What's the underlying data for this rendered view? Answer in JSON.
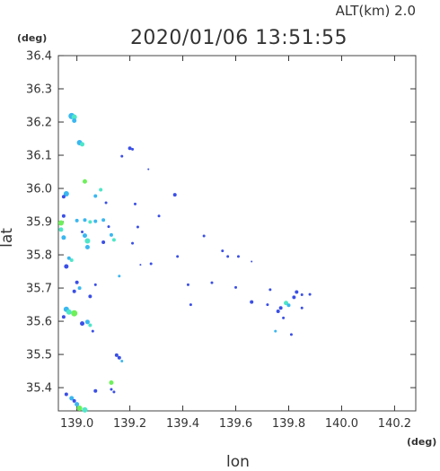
{
  "chart_data": {
    "type": "scatter",
    "title": "2020/01/06 13:51:55",
    "subtitle": "ALT(km)  2.0",
    "xlabel": "lon",
    "ylabel": "lat",
    "xunit": "(deg)",
    "yunit": "(deg)",
    "xlim": [
      138.93,
      140.28
    ],
    "ylim": [
      35.33,
      36.4
    ],
    "xticks": [
      "139.0",
      "139.2",
      "139.4",
      "139.6",
      "139.8",
      "140.0",
      "140.2"
    ],
    "yticks": [
      "35.4",
      "35.5",
      "35.6",
      "35.7",
      "35.8",
      "35.9",
      "36.0",
      "36.1",
      "36.2",
      "36.3",
      "36.4"
    ],
    "grid": false,
    "legend": "none",
    "colors": {
      "blue": "#3a4fe6",
      "cyan": "#3ab7f0",
      "teal": "#4ee6c8",
      "green": "#6ef05a",
      "ink": "#333333"
    },
    "points": [
      {
        "x": 138.98,
        "y": 36.218,
        "s": 3.5,
        "c": "cyan"
      },
      {
        "x": 138.99,
        "y": 36.215,
        "s": 3,
        "c": "teal"
      },
      {
        "x": 138.99,
        "y": 36.204,
        "s": 2.5,
        "c": "cyan"
      },
      {
        "x": 139.01,
        "y": 36.138,
        "s": 3,
        "c": "cyan"
      },
      {
        "x": 139.02,
        "y": 36.133,
        "s": 2.5,
        "c": "teal"
      },
      {
        "x": 139.03,
        "y": 36.021,
        "s": 2.5,
        "c": "green"
      },
      {
        "x": 138.96,
        "y": 35.984,
        "s": 3,
        "c": "cyan"
      },
      {
        "x": 138.95,
        "y": 35.975,
        "s": 2,
        "c": "blue"
      },
      {
        "x": 139.09,
        "y": 35.996,
        "s": 2,
        "c": "teal"
      },
      {
        "x": 139.07,
        "y": 35.977,
        "s": 2,
        "c": "cyan"
      },
      {
        "x": 139.11,
        "y": 35.957,
        "s": 1.5,
        "c": "blue"
      },
      {
        "x": 139.2,
        "y": 36.121,
        "s": 2,
        "c": "blue"
      },
      {
        "x": 139.21,
        "y": 36.118,
        "s": 1.5,
        "c": "blue"
      },
      {
        "x": 139.17,
        "y": 36.097,
        "s": 1.5,
        "c": "blue"
      },
      {
        "x": 139.27,
        "y": 36.058,
        "s": 1,
        "c": "blue"
      },
      {
        "x": 139.37,
        "y": 35.981,
        "s": 2,
        "c": "blue"
      },
      {
        "x": 139.22,
        "y": 35.953,
        "s": 1.5,
        "c": "blue"
      },
      {
        "x": 139.31,
        "y": 35.917,
        "s": 1.5,
        "c": "blue"
      },
      {
        "x": 138.94,
        "y": 35.896,
        "s": 3,
        "c": "green"
      },
      {
        "x": 138.94,
        "y": 35.876,
        "s": 2.5,
        "c": "teal"
      },
      {
        "x": 138.95,
        "y": 35.852,
        "s": 2.5,
        "c": "cyan"
      },
      {
        "x": 138.95,
        "y": 35.917,
        "s": 2,
        "c": "blue"
      },
      {
        "x": 139.0,
        "y": 35.903,
        "s": 2,
        "c": "cyan"
      },
      {
        "x": 139.03,
        "y": 35.905,
        "s": 2,
        "c": "cyan"
      },
      {
        "x": 139.05,
        "y": 35.899,
        "s": 2,
        "c": "teal"
      },
      {
        "x": 139.07,
        "y": 35.901,
        "s": 2,
        "c": "cyan"
      },
      {
        "x": 139.1,
        "y": 35.905,
        "s": 2,
        "c": "cyan"
      },
      {
        "x": 139.03,
        "y": 35.858,
        "s": 2.5,
        "c": "cyan"
      },
      {
        "x": 139.04,
        "y": 35.842,
        "s": 3,
        "c": "teal"
      },
      {
        "x": 139.04,
        "y": 35.823,
        "s": 2.5,
        "c": "cyan"
      },
      {
        "x": 139.02,
        "y": 35.869,
        "s": 1.5,
        "c": "blue"
      },
      {
        "x": 139.12,
        "y": 35.885,
        "s": 1.5,
        "c": "blue"
      },
      {
        "x": 139.13,
        "y": 35.86,
        "s": 2,
        "c": "cyan"
      },
      {
        "x": 139.14,
        "y": 35.845,
        "s": 2,
        "c": "teal"
      },
      {
        "x": 139.1,
        "y": 35.838,
        "s": 2,
        "c": "blue"
      },
      {
        "x": 139.23,
        "y": 35.884,
        "s": 1.5,
        "c": "blue"
      },
      {
        "x": 139.21,
        "y": 35.835,
        "s": 1.5,
        "c": "blue"
      },
      {
        "x": 139.16,
        "y": 35.736,
        "s": 1.5,
        "c": "cyan"
      },
      {
        "x": 139.28,
        "y": 35.773,
        "s": 1.5,
        "c": "blue"
      },
      {
        "x": 139.24,
        "y": 35.77,
        "s": 1,
        "c": "blue"
      },
      {
        "x": 139.38,
        "y": 35.795,
        "s": 1.5,
        "c": "blue"
      },
      {
        "x": 138.98,
        "y": 35.784,
        "s": 2,
        "c": "teal"
      },
      {
        "x": 138.97,
        "y": 35.79,
        "s": 2,
        "c": "cyan"
      },
      {
        "x": 138.96,
        "y": 35.765,
        "s": 2.5,
        "c": "blue"
      },
      {
        "x": 139.0,
        "y": 35.717,
        "s": 2,
        "c": "blue"
      },
      {
        "x": 139.01,
        "y": 35.7,
        "s": 2,
        "c": "cyan"
      },
      {
        "x": 138.99,
        "y": 35.69,
        "s": 2,
        "c": "blue"
      },
      {
        "x": 139.05,
        "y": 35.675,
        "s": 2,
        "c": "blue"
      },
      {
        "x": 139.07,
        "y": 35.71,
        "s": 1.5,
        "c": "blue"
      },
      {
        "x": 139.48,
        "y": 35.857,
        "s": 1.5,
        "c": "blue"
      },
      {
        "x": 139.55,
        "y": 35.812,
        "s": 1.5,
        "c": "blue"
      },
      {
        "x": 139.57,
        "y": 35.795,
        "s": 1.5,
        "c": "blue"
      },
      {
        "x": 139.61,
        "y": 35.795,
        "s": 1.5,
        "c": "blue"
      },
      {
        "x": 139.66,
        "y": 35.78,
        "s": 1,
        "c": "blue"
      },
      {
        "x": 139.42,
        "y": 35.71,
        "s": 1.5,
        "c": "blue"
      },
      {
        "x": 139.51,
        "y": 35.716,
        "s": 1.5,
        "c": "blue"
      },
      {
        "x": 139.6,
        "y": 35.702,
        "s": 1.5,
        "c": "blue"
      },
      {
        "x": 139.66,
        "y": 35.658,
        "s": 2,
        "c": "blue"
      },
      {
        "x": 139.72,
        "y": 35.65,
        "s": 1.5,
        "c": "blue"
      },
      {
        "x": 139.73,
        "y": 35.695,
        "s": 1.5,
        "c": "blue"
      },
      {
        "x": 139.76,
        "y": 35.63,
        "s": 2,
        "c": "blue"
      },
      {
        "x": 139.77,
        "y": 35.64,
        "s": 2,
        "c": "blue"
      },
      {
        "x": 139.78,
        "y": 35.61,
        "s": 1.5,
        "c": "blue"
      },
      {
        "x": 139.79,
        "y": 35.655,
        "s": 2.5,
        "c": "teal"
      },
      {
        "x": 139.8,
        "y": 35.648,
        "s": 2,
        "c": "cyan"
      },
      {
        "x": 139.82,
        "y": 35.672,
        "s": 2,
        "c": "blue"
      },
      {
        "x": 139.83,
        "y": 35.688,
        "s": 2,
        "c": "blue"
      },
      {
        "x": 139.85,
        "y": 35.68,
        "s": 1.5,
        "c": "blue"
      },
      {
        "x": 139.88,
        "y": 35.681,
        "s": 1.5,
        "c": "blue"
      },
      {
        "x": 139.85,
        "y": 35.64,
        "s": 1.5,
        "c": "blue"
      },
      {
        "x": 139.75,
        "y": 35.57,
        "s": 1.5,
        "c": "cyan"
      },
      {
        "x": 139.81,
        "y": 35.56,
        "s": 1.5,
        "c": "blue"
      },
      {
        "x": 139.43,
        "y": 35.65,
        "s": 1.5,
        "c": "blue"
      },
      {
        "x": 138.96,
        "y": 35.636,
        "s": 3,
        "c": "cyan"
      },
      {
        "x": 138.97,
        "y": 35.628,
        "s": 3,
        "c": "teal"
      },
      {
        "x": 138.99,
        "y": 35.624,
        "s": 3.5,
        "c": "green"
      },
      {
        "x": 138.95,
        "y": 35.613,
        "s": 2,
        "c": "blue"
      },
      {
        "x": 139.02,
        "y": 35.593,
        "s": 2.5,
        "c": "blue"
      },
      {
        "x": 139.04,
        "y": 35.598,
        "s": 2.5,
        "c": "cyan"
      },
      {
        "x": 139.05,
        "y": 35.588,
        "s": 2,
        "c": "teal"
      },
      {
        "x": 139.06,
        "y": 35.57,
        "s": 1.5,
        "c": "blue"
      },
      {
        "x": 139.15,
        "y": 35.498,
        "s": 2,
        "c": "blue"
      },
      {
        "x": 139.16,
        "y": 35.49,
        "s": 2,
        "c": "blue"
      },
      {
        "x": 139.17,
        "y": 35.48,
        "s": 1.5,
        "c": "cyan"
      },
      {
        "x": 139.13,
        "y": 35.415,
        "s": 2.5,
        "c": "green"
      },
      {
        "x": 139.13,
        "y": 35.395,
        "s": 1.5,
        "c": "blue"
      },
      {
        "x": 139.14,
        "y": 35.387,
        "s": 1.5,
        "c": "blue"
      },
      {
        "x": 139.07,
        "y": 35.39,
        "s": 2,
        "c": "blue"
      },
      {
        "x": 138.96,
        "y": 35.38,
        "s": 2,
        "c": "blue"
      },
      {
        "x": 138.98,
        "y": 35.368,
        "s": 2.5,
        "c": "cyan"
      },
      {
        "x": 138.99,
        "y": 35.36,
        "s": 2,
        "c": "blue"
      },
      {
        "x": 139.0,
        "y": 35.35,
        "s": 2.5,
        "c": "cyan"
      },
      {
        "x": 139.01,
        "y": 35.338,
        "s": 3,
        "c": "green"
      },
      {
        "x": 139.03,
        "y": 35.333,
        "s": 3,
        "c": "teal"
      }
    ]
  }
}
